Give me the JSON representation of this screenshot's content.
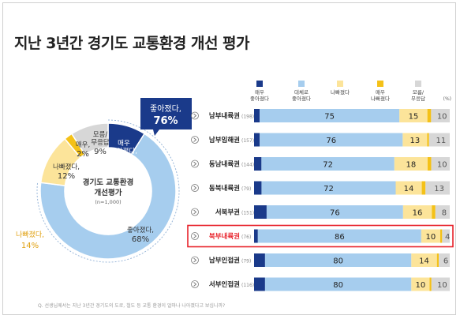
{
  "title": "지난 3년간 경기도 교통환경 개선 평가",
  "footnote": "Q. 선생님께서는 지난 3년간 경기도의 도로, 철도 등 교통 환경이 얼마나 나아졌다고 보십니까?",
  "colors": {
    "very_better": "#1a3a8a",
    "better": "#a6cdee",
    "worse": "#fce49a",
    "very_worse": "#f4c118",
    "dontknow": "#d7d7d7",
    "highlight": "#e8232b",
    "callout_bg": "#1a3a8a"
  },
  "donut": {
    "center_title_line1": "경기도 교통환경",
    "center_title_line2": "개선평가",
    "center_sub": "(n=1,000)",
    "slices": [
      {
        "label_line1": "매우",
        "label_line2": "좋아졌다,",
        "value_text": "9%",
        "value": 9,
        "color": "#1a3a8a"
      },
      {
        "label_line1": "좋아졌다,",
        "label_line2": "",
        "value_text": "68%",
        "value": 68,
        "color": "#a6cdee"
      },
      {
        "label_line1": "나빠졌다,",
        "label_line2": "",
        "value_text": "12%",
        "value": 12,
        "color": "#fce49a"
      },
      {
        "label_line1": "매우,",
        "label_line2": "",
        "value_text": "2%",
        "value": 2,
        "color": "#f4c118"
      },
      {
        "label_line1": "모름/",
        "label_line2": "무응답",
        "value_text": "9%",
        "value": 9,
        "color": "#d7d7d7"
      }
    ],
    "callout_better_line1": "좋아졌다,",
    "callout_better_line2": "76%",
    "callout_worse_line1": "나빠졌다,",
    "callout_worse_line2": "14%"
  },
  "chart_data": {
    "type": "bar",
    "orientation": "horizontal-stacked",
    "legend": [
      {
        "line1": "매우",
        "line2": "좋아졌다",
        "color": "#1a3a8a"
      },
      {
        "line1": "대체로",
        "line2": "좋아졌다",
        "color": "#a6cdee"
      },
      {
        "line1": "나빠졌다",
        "line2": "",
        "color": "#fce49a"
      },
      {
        "line1": "매우",
        "line2": "나빠졌다",
        "color": "#f4c118"
      },
      {
        "line1": "모름/",
        "line2": "무응답",
        "color": "#d7d7d7"
      }
    ],
    "unit": "(%)",
    "categories": [
      {
        "name": "남부내륙권",
        "n": "(198)"
      },
      {
        "name": "남부임해권",
        "n": "(157)"
      },
      {
        "name": "동남내륙권",
        "n": "(144)"
      },
      {
        "name": "동북내륙권",
        "n": "(79)"
      },
      {
        "name": "서북부권",
        "n": "(151)"
      },
      {
        "name": "북부내륙권",
        "n": "(76)"
      },
      {
        "name": "남부인접권",
        "n": "(79)"
      },
      {
        "name": "서부인접권",
        "n": "(116)"
      }
    ],
    "highlight_index": 5,
    "rows": [
      {
        "very_better": 3,
        "better": 75,
        "better_label": "75",
        "worse": 15,
        "worse_label": "15",
        "very_worse": 2,
        "dontknow": 10,
        "dontknow_label": "10"
      },
      {
        "very_better": 3,
        "better": 76,
        "better_label": "76",
        "worse": 13,
        "worse_label": "13",
        "very_worse": 1,
        "dontknow": 11,
        "dontknow_label": "11"
      },
      {
        "very_better": 4,
        "better": 72,
        "better_label": "72",
        "worse": 18,
        "worse_label": "18",
        "very_worse": 2,
        "dontknow": 10,
        "dontknow_label": "10"
      },
      {
        "very_better": 4,
        "better": 72,
        "better_label": "72",
        "worse": 14,
        "worse_label": "14",
        "very_worse": 2,
        "dontknow": 13,
        "dontknow_label": "13"
      },
      {
        "very_better": 7,
        "better": 76,
        "better_label": "76",
        "worse": 16,
        "worse_label": "16",
        "very_worse": 2,
        "dontknow": 8,
        "dontknow_label": "8"
      },
      {
        "very_better": 2,
        "better": 86,
        "better_label": "86",
        "worse": 10,
        "worse_label": "10",
        "very_worse": 1,
        "dontknow": 4,
        "dontknow_label": "4"
      },
      {
        "very_better": 6,
        "better": 80,
        "better_label": "80",
        "worse": 14,
        "worse_label": "14",
        "very_worse": 1,
        "dontknow": 6,
        "dontknow_label": "6"
      },
      {
        "very_better": 6,
        "better": 80,
        "better_label": "80",
        "worse": 10,
        "worse_label": "10",
        "very_worse": 1,
        "dontknow": 10,
        "dontknow_label": "10"
      }
    ]
  }
}
